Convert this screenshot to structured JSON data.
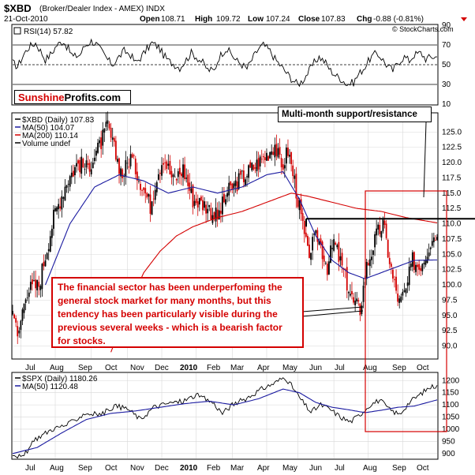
{
  "header": {
    "symbol": "$XBD",
    "description": "(Broker/Dealer Index - AMEX) INDX",
    "date": "21-Oct-2010",
    "open_label": "Open",
    "open": "108.71",
    "high_label": "High",
    "high": "109.72",
    "low_label": "Low",
    "low": "107.24",
    "close_label": "Close",
    "close": "107.83",
    "chg_label": "Chg",
    "chg": "-0.88 (-0.81%)",
    "watermark": "© StockCharts.com"
  },
  "logo": {
    "part1": "Sunshine",
    "part2": "Profits.com"
  },
  "annotations": {
    "support_label": "Multi-month support/resistance",
    "main_text": "The financial sector has been underperfoming the general stock market for many months, but this tendency has been particularly visible during the previous several weeks - which is a bearish factor for stocks."
  },
  "chart_data": [
    {
      "type": "line",
      "panel": "rsi",
      "legend": "RSI(14) 57.82",
      "ylim": [
        10,
        90
      ],
      "y_ticks": [
        "90",
        "70",
        "50",
        "30",
        "10"
      ],
      "reference_lines": [
        70,
        50,
        30
      ],
      "last_value": 57.82,
      "series": [
        {
          "name": "RSI(14)",
          "values": [
            52,
            48,
            61,
            68,
            72,
            64,
            55,
            62,
            70,
            74,
            66,
            58,
            60,
            69,
            74,
            71,
            62,
            55,
            50,
            58,
            64,
            60,
            52,
            57,
            66,
            72,
            68,
            60,
            54,
            50,
            47,
            55,
            62,
            58,
            52,
            45,
            44,
            58,
            66,
            62,
            55,
            50,
            46,
            58,
            66,
            70,
            64,
            56,
            48,
            42,
            36,
            30,
            34,
            44,
            52,
            58,
            52,
            44,
            38,
            35,
            30,
            32,
            40,
            48,
            56,
            62,
            57,
            50,
            44,
            52,
            58,
            54,
            60,
            62,
            56,
            58,
            57.82
          ]
        }
      ]
    },
    {
      "type": "candlestick",
      "panel": "price",
      "title": "$XBD (Daily) 107.83",
      "legend": [
        {
          "name": "$XBD (Daily)",
          "value": "107.83",
          "color": "#000000"
        },
        {
          "name": "MA(50)",
          "value": "104.07",
          "color": "#1a1aa0"
        },
        {
          "name": "MA(200)",
          "value": "110.14",
          "color": "#d40000"
        },
        {
          "name": "Volume",
          "value": "undef",
          "color": "#000000"
        }
      ],
      "ylim": [
        88,
        128
      ],
      "y_ticks": [
        "125.0",
        "122.5",
        "120.0",
        "117.5",
        "115.0",
        "112.5",
        "110.0",
        "107.5",
        "105.0",
        "102.5",
        "100.0",
        "97.5",
        "95.0",
        "92.5",
        "90.0"
      ],
      "x_labels": [
        "Jul",
        "Aug",
        "Sep",
        "Oct",
        "Nov",
        "Dec",
        "2010",
        "Feb",
        "Mar",
        "Apr",
        "May",
        "Jun",
        "Jul",
        "Aug",
        "Sep",
        "Oct"
      ],
      "price_anchors": [
        [
          0,
          97
        ],
        [
          3,
          91
        ],
        [
          8,
          99
        ],
        [
          16,
          100
        ],
        [
          25,
          111
        ],
        [
          33,
          117
        ],
        [
          40,
          120
        ],
        [
          45,
          119
        ],
        [
          52,
          122
        ],
        [
          58,
          126
        ],
        [
          62,
          122
        ],
        [
          67,
          118
        ],
        [
          72,
          121
        ],
        [
          78,
          117
        ],
        [
          84,
          113
        ],
        [
          88,
          118
        ],
        [
          92,
          121
        ],
        [
          98,
          117
        ],
        [
          104,
          119
        ],
        [
          110,
          114
        ],
        [
          118,
          113
        ],
        [
          125,
          111
        ],
        [
          131,
          115
        ],
        [
          138,
          117
        ],
        [
          146,
          119
        ],
        [
          154,
          121
        ],
        [
          160,
          123
        ],
        [
          164,
          119
        ],
        [
          168,
          122
        ],
        [
          172,
          117
        ],
        [
          176,
          111
        ],
        [
          180,
          105
        ],
        [
          186,
          108
        ],
        [
          192,
          103
        ],
        [
          196,
          107
        ],
        [
          202,
          102
        ],
        [
          208,
          97
        ],
        [
          212,
          96
        ],
        [
          216,
          103
        ],
        [
          222,
          108
        ],
        [
          226,
          110
        ],
        [
          232,
          101
        ],
        [
          236,
          97
        ],
        [
          240,
          99
        ],
        [
          244,
          104
        ],
        [
          248,
          103
        ],
        [
          252,
          105
        ],
        [
          256,
          108
        ],
        [
          259,
          107.83
        ]
      ],
      "ma50_anchors": [
        [
          20,
          100
        ],
        [
          35,
          110
        ],
        [
          50,
          116
        ],
        [
          65,
          118
        ],
        [
          80,
          117
        ],
        [
          95,
          115
        ],
        [
          110,
          116
        ],
        [
          125,
          115
        ],
        [
          140,
          116
        ],
        [
          155,
          118
        ],
        [
          165,
          118.5
        ],
        [
          175,
          114
        ],
        [
          185,
          108
        ],
        [
          195,
          104
        ],
        [
          205,
          102
        ],
        [
          215,
          101
        ],
        [
          225,
          102
        ],
        [
          235,
          103
        ],
        [
          245,
          104
        ],
        [
          259,
          104.07
        ]
      ],
      "ma200_anchors": [
        [
          60,
          89
        ],
        [
          70,
          96
        ],
        [
          80,
          102
        ],
        [
          90,
          105.5
        ],
        [
          100,
          108
        ],
        [
          110,
          109.5
        ],
        [
          125,
          111
        ],
        [
          140,
          112
        ],
        [
          155,
          113.5
        ],
        [
          170,
          115
        ],
        [
          180,
          114.5
        ],
        [
          195,
          113.5
        ],
        [
          210,
          112.5
        ],
        [
          225,
          112
        ],
        [
          240,
          111
        ],
        [
          259,
          110.14
        ]
      ],
      "support_level": 110.8
    },
    {
      "type": "line",
      "panel": "spx",
      "legend": [
        {
          "name": "$SPX (Daily)",
          "value": "1180.26",
          "color": "#000000"
        },
        {
          "name": "MA(50)",
          "value": "1120.48",
          "color": "#1a1aa0"
        }
      ],
      "ylim": [
        880,
        1230
      ],
      "y_ticks": [
        "1200",
        "1150",
        "1100",
        "1050",
        "1000",
        "950",
        "900"
      ],
      "x_labels": [
        "Jul",
        "Aug",
        "Sep",
        "Oct",
        "Nov",
        "Dec",
        "2010",
        "Feb",
        "Mar",
        "Apr",
        "May",
        "Jun",
        "Jul",
        "Aug",
        "Sep",
        "Oct"
      ],
      "price_anchors": [
        [
          0,
          900
        ],
        [
          6,
          882
        ],
        [
          14,
          960
        ],
        [
          24,
          1000
        ],
        [
          34,
          1020
        ],
        [
          44,
          1065
        ],
        [
          54,
          1060
        ],
        [
          62,
          1095
        ],
        [
          70,
          1085
        ],
        [
          78,
          1040
        ],
        [
          86,
          1090
        ],
        [
          94,
          1105
        ],
        [
          104,
          1115
        ],
        [
          112,
          1140
        ],
        [
          122,
          1110
        ],
        [
          128,
          1065
        ],
        [
          134,
          1100
        ],
        [
          142,
          1125
        ],
        [
          152,
          1165
        ],
        [
          160,
          1190
        ],
        [
          166,
          1215
        ],
        [
          170,
          1180
        ],
        [
          176,
          1120
        ],
        [
          182,
          1070
        ],
        [
          188,
          1100
        ],
        [
          194,
          1080
        ],
        [
          200,
          1050
        ],
        [
          206,
          1030
        ],
        [
          212,
          1060
        ],
        [
          218,
          1100
        ],
        [
          224,
          1120
        ],
        [
          230,
          1080
        ],
        [
          236,
          1060
        ],
        [
          242,
          1110
        ],
        [
          248,
          1140
        ],
        [
          254,
          1170
        ],
        [
          259,
          1180.26
        ]
      ],
      "ma50_anchors": [
        [
          0,
          900
        ],
        [
          15,
          925
        ],
        [
          30,
          985
        ],
        [
          45,
          1040
        ],
        [
          60,
          1065
        ],
        [
          75,
          1075
        ],
        [
          90,
          1090
        ],
        [
          105,
          1105
        ],
        [
          120,
          1115
        ],
        [
          135,
          1100
        ],
        [
          150,
          1125
        ],
        [
          165,
          1165
        ],
        [
          175,
          1150
        ],
        [
          185,
          1110
        ],
        [
          195,
          1090
        ],
        [
          205,
          1080
        ],
        [
          215,
          1068
        ],
        [
          225,
          1078
        ],
        [
          235,
          1090
        ],
        [
          245,
          1095
        ],
        [
          259,
          1120.48
        ]
      ],
      "last_value": 1180.26,
      "last_ma50": 1120.48
    }
  ],
  "colors": {
    "up": "#000000",
    "down": "#d40000",
    "ma50": "#1a1aa0",
    "ma200": "#d40000",
    "highlight": "#d40000",
    "grid": "#d8d8d8"
  }
}
